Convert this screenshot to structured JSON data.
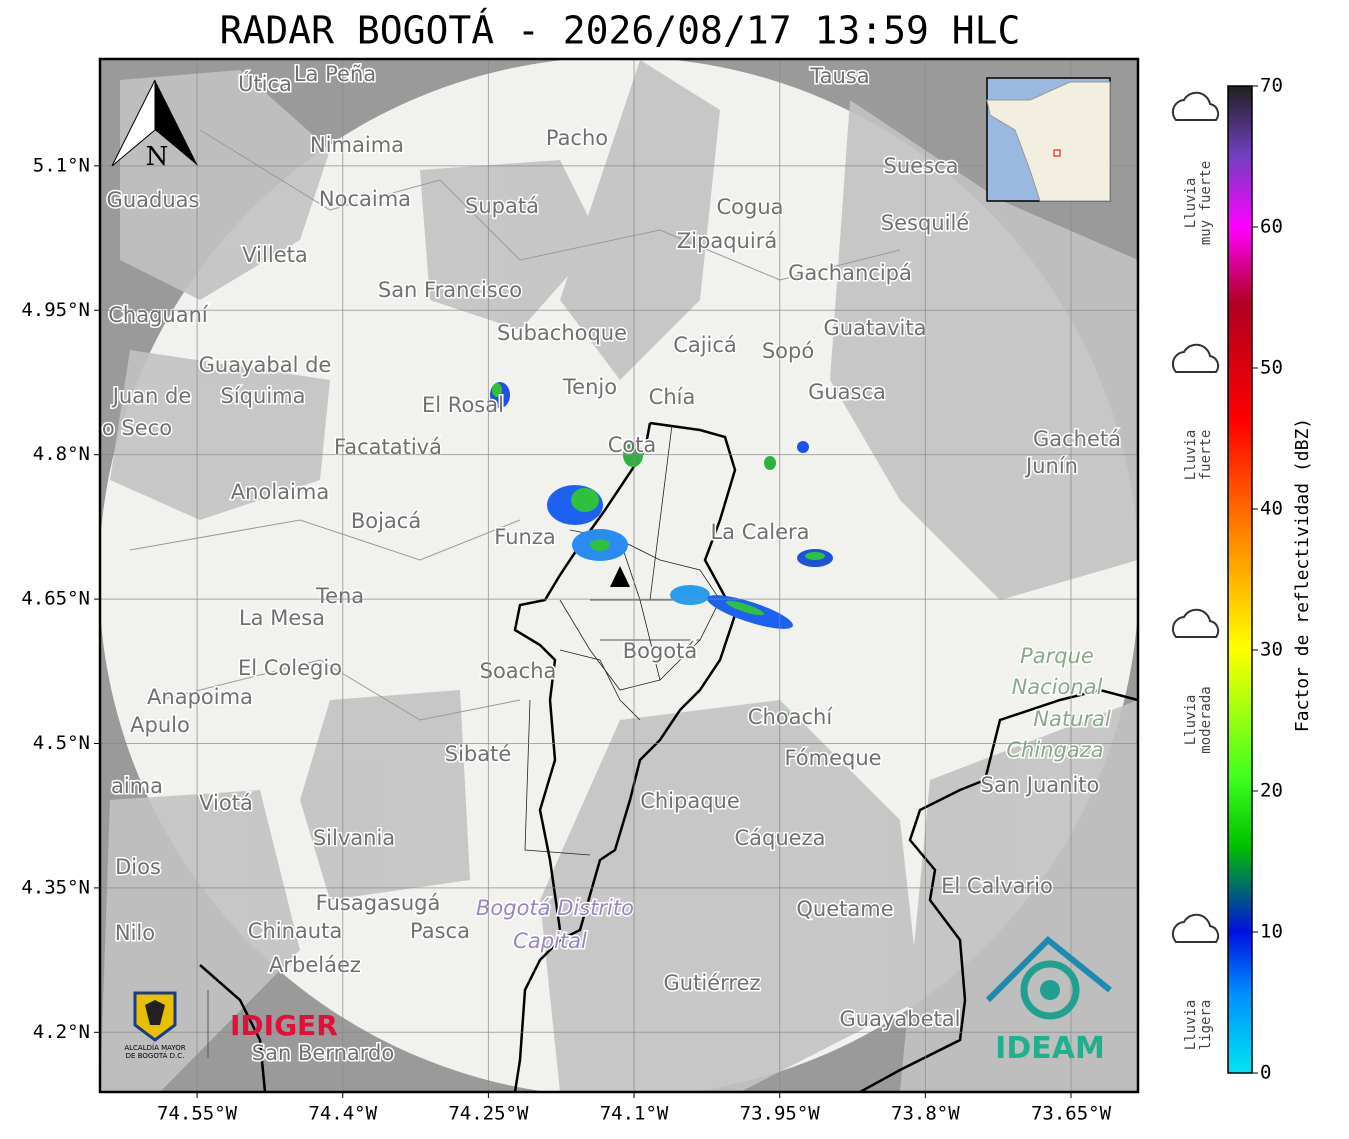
{
  "map": {
    "title": "RADAR BOGOTÁ - 2026/08/17 13:59 HLC",
    "lonlim": [
      -74.65,
      -73.581
    ],
    "latlim": [
      4.138,
      5.211
    ],
    "lon_ticks": [
      {
        "value": -74.55,
        "label": "74.55°W"
      },
      {
        "value": -74.4,
        "label": "74.4°W"
      },
      {
        "value": -74.25,
        "label": "74.25°W"
      },
      {
        "value": -74.1,
        "label": "74.1°W"
      },
      {
        "value": -73.95,
        "label": "73.95°W"
      },
      {
        "value": -73.8,
        "label": "73.8°W"
      },
      {
        "value": -73.65,
        "label": "73.65°W"
      }
    ],
    "lat_ticks": [
      {
        "value": 5.1,
        "label": "5.1°N"
      },
      {
        "value": 4.95,
        "label": "4.95°N"
      },
      {
        "value": 4.8,
        "label": "4.8°N"
      },
      {
        "value": 4.65,
        "label": "4.65°N"
      },
      {
        "value": 4.5,
        "label": "4.5°N"
      },
      {
        "value": 4.35,
        "label": "4.35°N"
      },
      {
        "value": 4.2,
        "label": "4.2°N"
      }
    ],
    "north_label": "N",
    "places": [
      "La Peña",
      "Útica",
      "Tausa",
      "Pacho",
      "Nimaima",
      "Suesca",
      "Guaduas",
      "Nocaima",
      "Supatá",
      "Cogua",
      "Sesquilé",
      "Zipaquirá",
      "Villeta",
      "Gachancipá",
      "San Francisco",
      "Chaguaní",
      "Guatavita",
      "Subachoque",
      "Cajicá",
      "Sopó",
      "Guayabal de",
      "Síquima",
      "Tenjo",
      "Juan de",
      "Guasca",
      "Chía",
      "El Rosal",
      "o Seco",
      "Cota",
      "Facatativá",
      "Gachetá",
      "Junín",
      "Anolaima",
      "Bojacá",
      "Funza",
      "La Calera",
      "Tena",
      "La Mesa",
      "Parque",
      "Bogotá",
      "El Colegio",
      "Soacha",
      "Anapoima",
      "Nacional",
      "Apulo",
      "Natural",
      "Choachí",
      "Chingaza",
      "Sibaté",
      "Fómeque",
      "San Juanito",
      "aima",
      "Viotá",
      "Chipaque",
      "Silvania",
      "Cáqueza",
      "Dios",
      "El Calvario",
      "Fusagasugá",
      "Bogotá Distrito",
      "Quetame",
      "Nilo",
      "Chinauta",
      "Pasca",
      "Capital",
      "Arbeláez",
      "Gutiérrez",
      "Guayabetal",
      "San Bernardo"
    ]
  },
  "colorbar": {
    "label": "Factor de reflectividad (dBZ)",
    "lim": [
      0,
      70
    ],
    "ticks": [
      0,
      10,
      20,
      30,
      40,
      50,
      60,
      70
    ]
  },
  "rain_legend": [
    [
      "Lluvia",
      "muy fuerte"
    ],
    [
      "Lluvia",
      "fuerte"
    ],
    [
      "Lluvia",
      "moderada"
    ],
    [
      "Lluvia",
      "ligera"
    ]
  ],
  "logos": {
    "alcaldia": [
      "ALCALDÍA MAYOR",
      "DE BOGOTÁ D.C."
    ],
    "idiger": "IDIGER",
    "ideam": "IDEAM"
  }
}
